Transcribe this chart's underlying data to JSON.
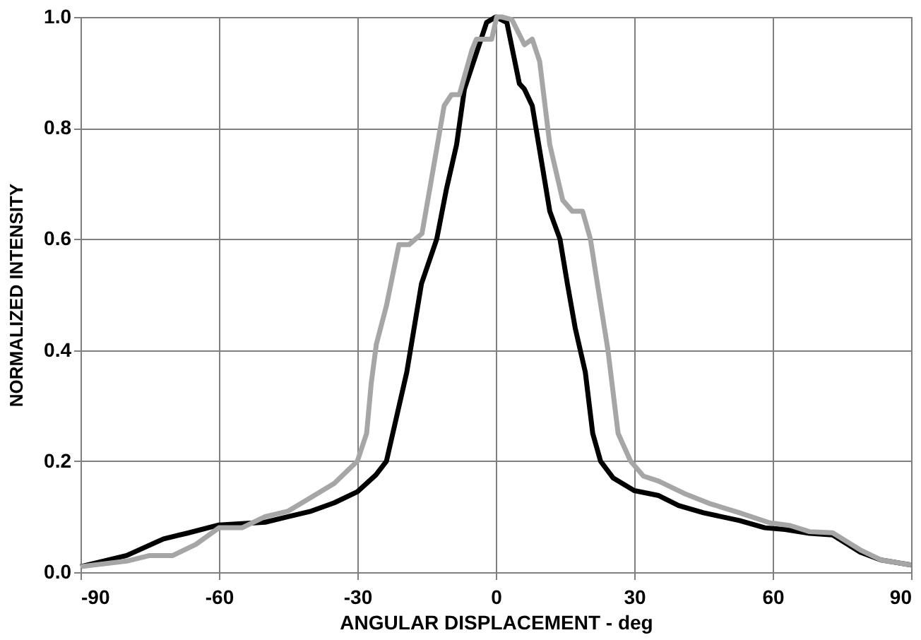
{
  "chart_data": {
    "type": "line",
    "xlabel": "ANGULAR DISPLACEMENT - deg",
    "ylabel": "NORMALIZED INTENSITY",
    "xlim": [
      -90,
      90
    ],
    "xticks": [
      -90,
      -60,
      -30,
      0,
      30,
      60,
      90
    ],
    "ylim": [
      0,
      1
    ],
    "yticks": [
      {
        "value": 0,
        "label": "0.0"
      },
      0.2,
      0.4,
      0.6,
      0.8,
      {
        "value": 1,
        "label": "1.0"
      }
    ],
    "grid": true,
    "line_style": "solid",
    "marker": "none",
    "series": [
      {
        "color": "#000000",
        "x": [
          -90,
          -80,
          -72,
          -67,
          -60,
          -50,
          -45,
          -40,
          -35,
          -30,
          -26,
          -23.7,
          -19.3,
          -16.1,
          -12.8,
          -10.7,
          -8.5,
          -6.8,
          -2,
          0,
          2.4,
          5.1,
          6.2,
          7.9,
          9.5,
          11.7,
          13.9,
          15.5,
          17.2,
          19.4,
          21,
          22.7,
          25.4,
          30,
          35.3,
          39.6,
          45,
          52.8,
          58.3,
          62.7,
          68,
          73,
          79,
          83.5,
          90
        ],
        "values": [
          0.01,
          0.03,
          0.06,
          0.07,
          0.085,
          0.09,
          0.1,
          0.11,
          0.125,
          0.145,
          0.175,
          0.2,
          0.36,
          0.52,
          0.6,
          0.69,
          0.77,
          0.87,
          0.99,
          1.0,
          0.99,
          0.88,
          0.87,
          0.84,
          0.76,
          0.65,
          0.6,
          0.52,
          0.44,
          0.36,
          0.25,
          0.2,
          0.17,
          0.147,
          0.138,
          0.12,
          0.107,
          0.093,
          0.08,
          0.077,
          0.07,
          0.067,
          0.036,
          0.022,
          0.013
        ]
      },
      {
        "color": "#a6a6a6",
        "x": [
          -90,
          -80,
          -75,
          -70,
          -65,
          -60,
          -55,
          -50,
          -45,
          -40,
          -35,
          -30,
          -28,
          -27,
          -25.9,
          -23.7,
          -21,
          -18.8,
          -16,
          -13.9,
          -11.2,
          -9.6,
          -7.9,
          -5.2,
          -4.2,
          -0.9,
          0.2,
          1.3,
          3.5,
          6.2,
          7.9,
          9.5,
          11.7,
          14.5,
          16.6,
          18.8,
          20.5,
          22,
          24.3,
          26.5,
          29.2,
          32,
          35.3,
          40.8,
          46.2,
          52.8,
          59.3,
          63.8,
          68,
          73,
          79,
          83.5,
          90
        ],
        "values": [
          0.01,
          0.02,
          0.03,
          0.03,
          0.05,
          0.08,
          0.08,
          0.1,
          0.11,
          0.135,
          0.16,
          0.2,
          0.25,
          0.34,
          0.41,
          0.48,
          0.59,
          0.59,
          0.61,
          0.71,
          0.84,
          0.86,
          0.86,
          0.94,
          0.96,
          0.96,
          1.0,
          1.0,
          0.995,
          0.95,
          0.96,
          0.92,
          0.77,
          0.67,
          0.65,
          0.65,
          0.6,
          0.52,
          0.4,
          0.25,
          0.2,
          0.173,
          0.164,
          0.142,
          0.124,
          0.107,
          0.089,
          0.084,
          0.073,
          0.071,
          0.04,
          0.022,
          0.013
        ]
      }
    ]
  }
}
